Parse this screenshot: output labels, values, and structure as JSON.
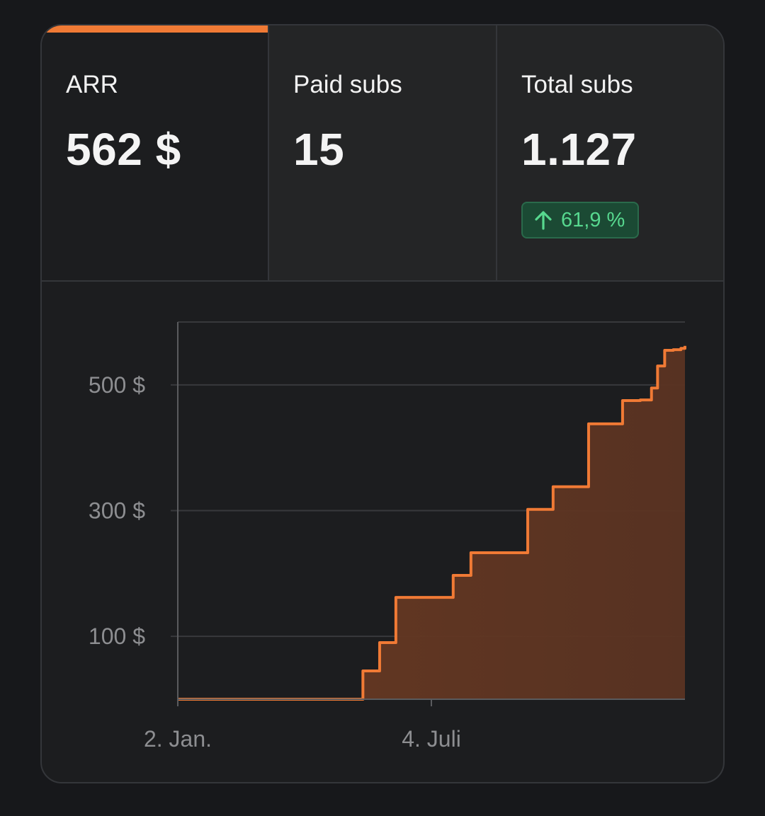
{
  "stats": [
    {
      "label": "ARR",
      "value": "562 $",
      "active": true
    },
    {
      "label": "Paid subs",
      "value": "15",
      "active": false
    },
    {
      "label": "Total subs",
      "value": "1.127",
      "active": false,
      "change": "61,9 %"
    }
  ],
  "colors": {
    "accent": "#f07a35",
    "positive": "#57d88f",
    "positive_bg": "#1b4a34"
  },
  "chart_data": {
    "type": "area",
    "step": true,
    "ylim": [
      0,
      600
    ],
    "yticks": [
      100,
      300,
      500
    ],
    "ytick_labels": [
      "100 $",
      "300 $",
      "500 $"
    ],
    "xticks": [
      0,
      0.5
    ],
    "xtick_labels": [
      "2. Jan.",
      "4. Juli"
    ],
    "grid": true,
    "x": [
      0,
      0.365,
      0.398,
      0.43,
      0.543,
      0.578,
      0.69,
      0.74,
      0.81,
      0.877,
      0.912,
      0.934,
      0.946,
      0.96,
      0.977,
      0.992,
      1.0
    ],
    "values": [
      0,
      45,
      90,
      162,
      197,
      233,
      302,
      338,
      438,
      475,
      476,
      495,
      530,
      555,
      556,
      558,
      562
    ]
  }
}
